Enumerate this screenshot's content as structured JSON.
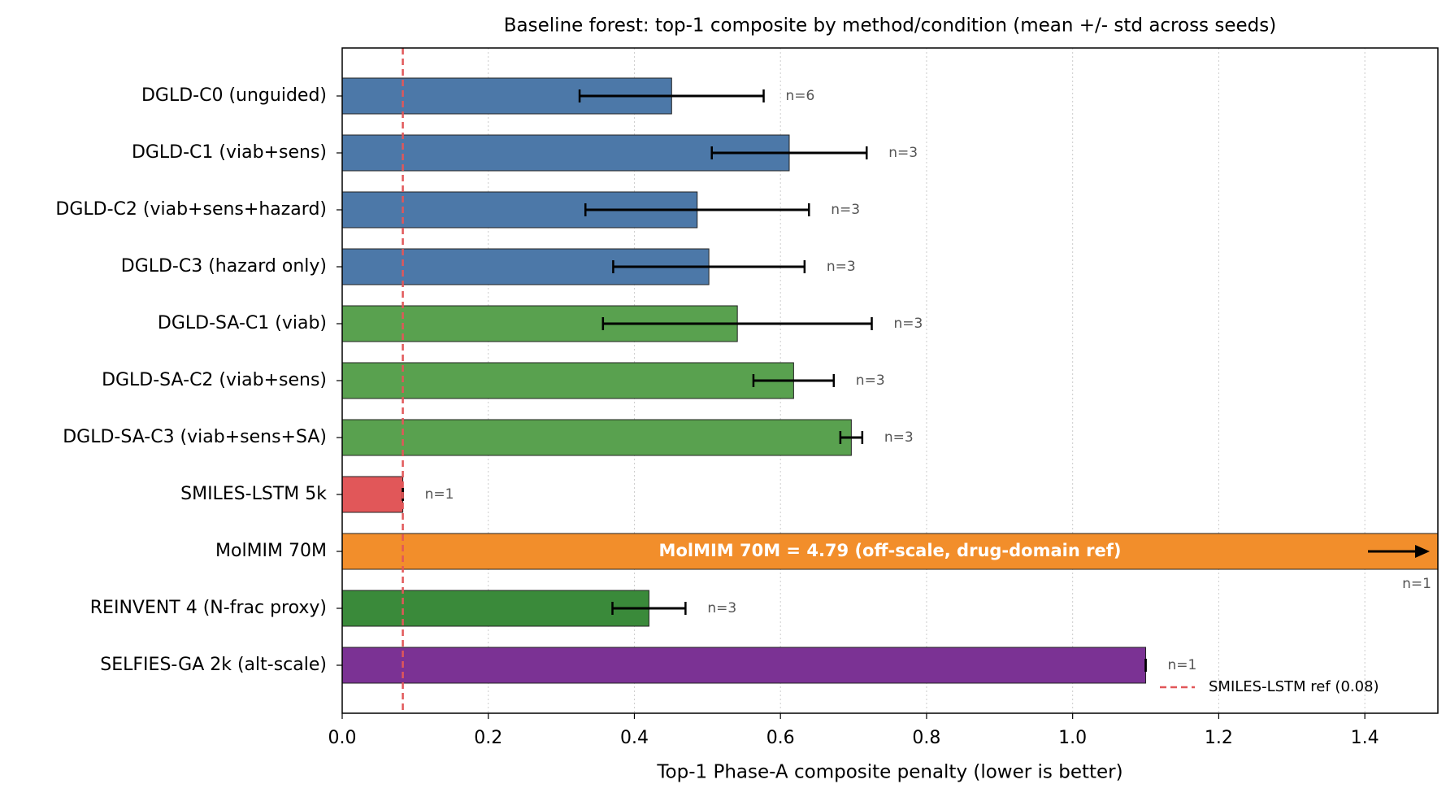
{
  "chart_data": {
    "type": "forest",
    "title": "Baseline forest: top-1 composite by method/condition (mean +/- std across seeds)",
    "x_label": "Top-1 Phase-A composite penalty (lower is better)",
    "categories": [
      "DGLD-C0 (unguided)",
      "DGLD-C1 (viab+sens)",
      "DGLD-C2 (viab+sens+hazard)",
      "DGLD-C3 (hazard only)",
      "DGLD-SA-C1 (viab)",
      "DGLD-SA-C2 (viab+sens)",
      "DGLD-SA-C3 (viab+sens+SA)",
      "SMILES-LSTM 5k",
      "MolMIM 70M",
      "REINVENT 4 (N-frac proxy)",
      "SELFIES-GA 2k (alt-scale)"
    ],
    "values": [
      0.451,
      0.612,
      0.486,
      0.502,
      0.541,
      0.618,
      0.697,
      0.083,
      4.79,
      0.42,
      1.1
    ],
    "errors": [
      0.126,
      0.106,
      0.153,
      0.131,
      0.184,
      0.055,
      0.015,
      0,
      null,
      0.05,
      0
    ],
    "n_labels": [
      "n=6",
      "n=3",
      "n=3",
      "n=3",
      "n=3",
      "n=3",
      "n=3",
      "n=1",
      "n=1",
      "n=3",
      "n=1"
    ],
    "colors": [
      "#4c78a8",
      "#4c78a8",
      "#4c78a8",
      "#4c78a8",
      "#59a14f",
      "#59a14f",
      "#59a14f",
      "#e15759",
      "#f28e2b",
      "#3a8a3a",
      "#7b3294"
    ],
    "annotation": "MolMIM 70M = 4.79  (off-scale, drug-domain ref)",
    "reference_line": {
      "value": 0.083,
      "label": "SMILES-LSTM ref (0.08)",
      "color": "#e15759"
    },
    "xlim": [
      0,
      1.5
    ],
    "xticks": [
      {
        "value": 0,
        "label": "0.0"
      },
      {
        "value": 0.2,
        "label": "0.2"
      },
      {
        "value": 0.4,
        "label": "0.4"
      },
      {
        "value": 0.6,
        "label": "0.6"
      },
      {
        "value": 0.8,
        "label": "0.8"
      },
      {
        "value": 1.0,
        "label": "1.0"
      },
      {
        "value": 1.2,
        "label": "1.2"
      },
      {
        "value": 1.4,
        "label": "1.4"
      }
    ],
    "grid": true,
    "legend_position": "lower right"
  }
}
